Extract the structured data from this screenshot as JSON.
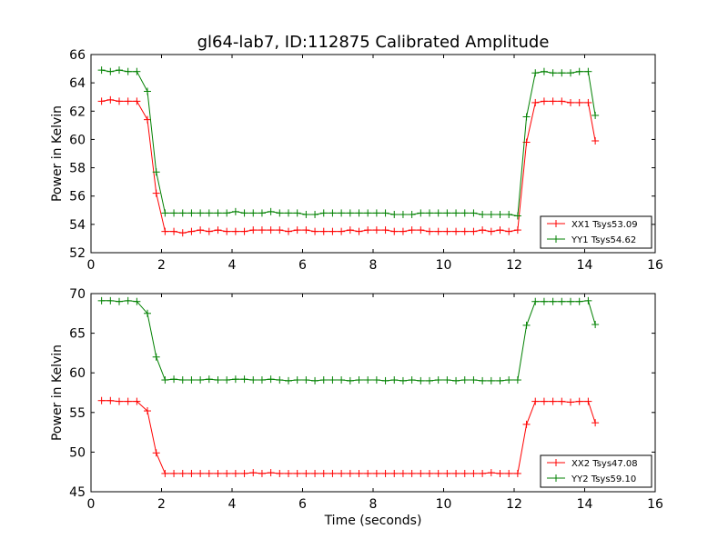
{
  "chart_data": [
    {
      "type": "line",
      "title": "gl64-lab7, ID:112875 Calibrated Amplitude",
      "xlabel": "",
      "ylabel": "Power in Kelvin",
      "xlim": [
        0,
        16
      ],
      "ylim": [
        52,
        66
      ],
      "xticks": [
        0,
        2,
        4,
        6,
        8,
        10,
        12,
        14,
        16
      ],
      "yticks": [
        52,
        54,
        56,
        58,
        60,
        62,
        64,
        66
      ],
      "legend_position": "lower-right",
      "grid": false,
      "x": [
        0.3,
        0.55,
        0.8,
        1.05,
        1.3,
        1.6,
        1.85,
        2.1,
        2.35,
        2.6,
        2.85,
        3.1,
        3.35,
        3.6,
        3.85,
        4.1,
        4.35,
        4.6,
        4.85,
        5.1,
        5.35,
        5.6,
        5.85,
        6.1,
        6.35,
        6.6,
        6.85,
        7.1,
        7.35,
        7.6,
        7.85,
        8.1,
        8.35,
        8.6,
        8.85,
        9.1,
        9.35,
        9.6,
        9.85,
        10.1,
        10.35,
        10.6,
        10.85,
        11.1,
        11.35,
        11.6,
        11.85,
        12.1,
        12.35,
        12.6,
        12.85,
        13.1,
        13.35,
        13.6,
        13.85,
        14.1,
        14.3
      ],
      "series": [
        {
          "name": "XX1 Tsys53.09",
          "color": "#ff0000",
          "values": [
            62.7,
            62.8,
            62.7,
            62.7,
            62.7,
            61.4,
            56.2,
            53.5,
            53.5,
            53.4,
            53.5,
            53.6,
            53.5,
            53.6,
            53.5,
            53.5,
            53.5,
            53.6,
            53.6,
            53.6,
            53.6,
            53.5,
            53.6,
            53.6,
            53.5,
            53.5,
            53.5,
            53.5,
            53.6,
            53.5,
            53.6,
            53.6,
            53.6,
            53.5,
            53.5,
            53.6,
            53.6,
            53.5,
            53.5,
            53.5,
            53.5,
            53.5,
            53.5,
            53.6,
            53.5,
            53.6,
            53.5,
            53.6,
            59.8,
            62.6,
            62.7,
            62.7,
            62.7,
            62.6,
            62.6,
            62.6,
            59.9
          ]
        },
        {
          "name": "YY1 Tsys54.62",
          "color": "#008000",
          "values": [
            64.9,
            64.8,
            64.9,
            64.8,
            64.8,
            63.4,
            57.7,
            54.8,
            54.8,
            54.8,
            54.8,
            54.8,
            54.8,
            54.8,
            54.8,
            54.9,
            54.8,
            54.8,
            54.8,
            54.9,
            54.8,
            54.8,
            54.8,
            54.7,
            54.7,
            54.8,
            54.8,
            54.8,
            54.8,
            54.8,
            54.8,
            54.8,
            54.8,
            54.7,
            54.7,
            54.7,
            54.8,
            54.8,
            54.8,
            54.8,
            54.8,
            54.8,
            54.8,
            54.7,
            54.7,
            54.7,
            54.7,
            54.6,
            61.6,
            64.7,
            64.8,
            64.7,
            64.7,
            64.7,
            64.8,
            64.8,
            61.7
          ]
        }
      ]
    },
    {
      "type": "line",
      "title": "",
      "xlabel": "Time (seconds)",
      "ylabel": "Power in Kelvin",
      "xlim": [
        0,
        16
      ],
      "ylim": [
        45,
        70
      ],
      "xticks": [
        0,
        2,
        4,
        6,
        8,
        10,
        12,
        14,
        16
      ],
      "yticks": [
        45,
        50,
        55,
        60,
        65,
        70
      ],
      "legend_position": "lower-right",
      "grid": false,
      "x": [
        0.3,
        0.55,
        0.8,
        1.05,
        1.3,
        1.6,
        1.85,
        2.1,
        2.35,
        2.6,
        2.85,
        3.1,
        3.35,
        3.6,
        3.85,
        4.1,
        4.35,
        4.6,
        4.85,
        5.1,
        5.35,
        5.6,
        5.85,
        6.1,
        6.35,
        6.6,
        6.85,
        7.1,
        7.35,
        7.6,
        7.85,
        8.1,
        8.35,
        8.6,
        8.85,
        9.1,
        9.35,
        9.6,
        9.85,
        10.1,
        10.35,
        10.6,
        10.85,
        11.1,
        11.35,
        11.6,
        11.85,
        12.1,
        12.35,
        12.6,
        12.85,
        13.1,
        13.35,
        13.6,
        13.85,
        14.1,
        14.3
      ],
      "series": [
        {
          "name": "XX2 Tsys47.08",
          "color": "#ff0000",
          "values": [
            56.5,
            56.5,
            56.4,
            56.4,
            56.4,
            55.2,
            49.9,
            47.3,
            47.3,
            47.3,
            47.3,
            47.3,
            47.3,
            47.3,
            47.3,
            47.3,
            47.3,
            47.4,
            47.3,
            47.4,
            47.3,
            47.3,
            47.3,
            47.3,
            47.3,
            47.3,
            47.3,
            47.3,
            47.3,
            47.3,
            47.3,
            47.3,
            47.3,
            47.3,
            47.3,
            47.3,
            47.3,
            47.3,
            47.3,
            47.3,
            47.3,
            47.3,
            47.3,
            47.3,
            47.4,
            47.3,
            47.3,
            47.3,
            53.5,
            56.4,
            56.4,
            56.4,
            56.4,
            56.3,
            56.4,
            56.4,
            53.7
          ]
        },
        {
          "name": "YY2 Tsys59.10",
          "color": "#008000",
          "values": [
            69.1,
            69.1,
            69.0,
            69.1,
            69.0,
            67.5,
            62.0,
            59.1,
            59.2,
            59.1,
            59.1,
            59.1,
            59.2,
            59.1,
            59.1,
            59.2,
            59.2,
            59.1,
            59.1,
            59.2,
            59.1,
            59.0,
            59.1,
            59.1,
            59.0,
            59.1,
            59.1,
            59.1,
            59.0,
            59.1,
            59.1,
            59.1,
            59.0,
            59.1,
            59.0,
            59.1,
            59.0,
            59.0,
            59.1,
            59.1,
            59.0,
            59.1,
            59.1,
            59.0,
            59.0,
            59.0,
            59.1,
            59.1,
            66.0,
            69.0,
            69.0,
            69.0,
            69.0,
            69.0,
            69.0,
            69.1,
            66.1
          ]
        }
      ]
    }
  ]
}
